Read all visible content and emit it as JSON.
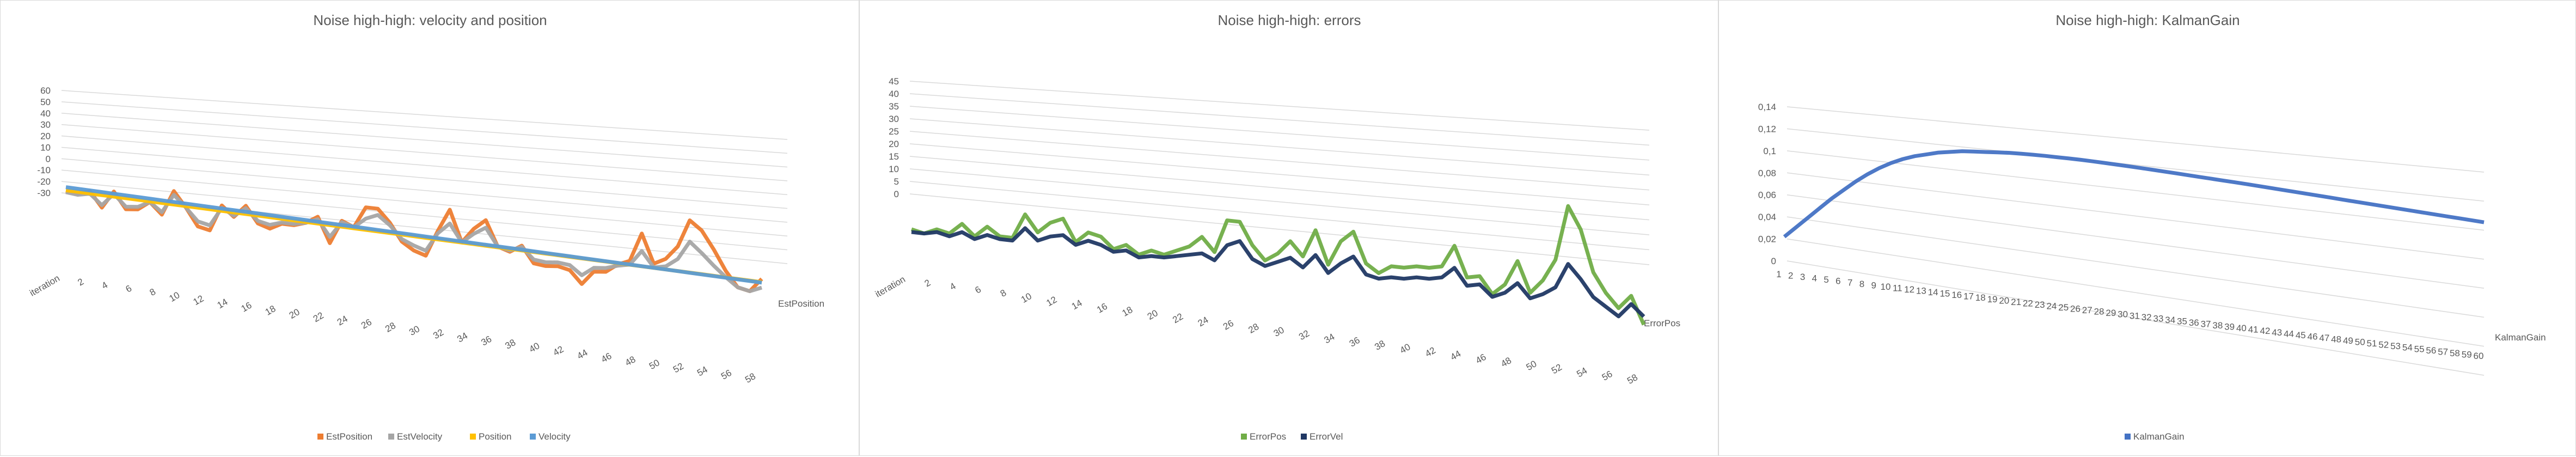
{
  "chart_data": [
    {
      "type": "line",
      "title": "Noise high-high: velocity and position",
      "y_ticks": [
        "60",
        "50",
        "40",
        "30",
        "20",
        "10",
        "0",
        "-10",
        "-20",
        "-30"
      ],
      "ylim": [
        -30,
        60
      ],
      "x_ticks": [
        "iteration",
        "2",
        "4",
        "6",
        "8",
        "10",
        "12",
        "14",
        "16",
        "18",
        "20",
        "22",
        "24",
        "26",
        "28",
        "30",
        "32",
        "34",
        "36",
        "38",
        "40",
        "42",
        "44",
        "46",
        "48",
        "50",
        "52",
        "54",
        "56",
        "58"
      ],
      "depth_label": "EstPosition",
      "legend": "bottom",
      "series": [
        {
          "name": "EstPosition",
          "color": "#ED7D31",
          "values": [
            2,
            1,
            4,
            -8,
            6,
            -7,
            -6,
            1,
            -8,
            12,
            0,
            -14,
            -16,
            5,
            -3,
            7,
            -6,
            -9,
            -4,
            -4,
            -1,
            5,
            -15,
            4,
            0,
            17,
            17,
            7,
            -7,
            -13,
            -16,
            5,
            23,
            -2,
            10,
            18,
            -2,
            -5,
            1,
            -12,
            -13,
            -12,
            -14,
            -24,
            -13,
            -12,
            -5,
            -1,
            22,
            -1,
            4,
            15,
            37,
            30,
            16,
            0,
            -12,
            -14,
            -3
          ]
        },
        {
          "name": "EstVelocity",
          "color": "#A5A5A5",
          "values": [
            1,
            0,
            2,
            -6,
            4,
            -5,
            -4,
            1,
            -6,
            9,
            0,
            -10,
            -12,
            3,
            -2,
            5,
            -4,
            -6,
            -3,
            -3,
            -1,
            3,
            -10,
            3,
            0,
            8,
            12,
            5,
            -5,
            -9,
            -12,
            3,
            12,
            -2,
            6,
            12,
            -2,
            -4,
            0,
            -9,
            -10,
            -9,
            -10,
            -17,
            -10,
            -9,
            -6,
            -4,
            8,
            -4,
            -2,
            5,
            20,
            12,
            3,
            -5,
            -12,
            -14,
            -10
          ]
        },
        {
          "name": "Position",
          "color": "#FFC000",
          "values": [
            2.5,
            2.36,
            2.22,
            2.08,
            1.94,
            1.8,
            1.66,
            1.52,
            1.38,
            1.24,
            1.1,
            0.96,
            0.82,
            0.68,
            0.54,
            0.4,
            0.26,
            0.12,
            -0.02,
            -0.16,
            -0.3,
            -0.44,
            -0.58,
            -0.72,
            -0.86,
            -1,
            -1.14,
            -1.28,
            -1.42,
            -1.56,
            -1.7,
            -1.84,
            -1.98,
            -2.12,
            -2.26,
            -2.4,
            -2.54,
            -2.68,
            -2.82,
            -2.96,
            -3.1,
            -3.24,
            -3.38,
            -3.52,
            -3.66,
            -3.8,
            -3.94,
            -4.08,
            -4.22,
            -4.36,
            -4.5,
            -4.64,
            -4.78,
            -4.92,
            -5.06,
            -5.2,
            -5.34,
            -5.48,
            -5.62
          ]
        },
        {
          "name": "Velocity",
          "color": "#5B9BD5",
          "values": [
            5,
            4.81,
            4.62,
            4.43,
            4.24,
            4.05,
            3.86,
            3.67,
            3.48,
            3.29,
            3.1,
            2.91,
            2.72,
            2.53,
            2.34,
            2.15,
            1.96,
            1.77,
            1.58,
            1.39,
            1.2,
            1.01,
            0.82,
            0.63,
            0.44,
            0.25,
            0.06,
            -0.13,
            -0.32,
            -0.51,
            -0.7,
            -0.89,
            -1.08,
            -1.27,
            -1.46,
            -1.65,
            -1.84,
            -2.03,
            -2.22,
            -2.41,
            -2.6,
            -2.79,
            -2.98,
            -3.17,
            -3.36,
            -3.55,
            -3.74,
            -3.93,
            -4.12,
            -4.31,
            -4.5,
            -4.69,
            -4.88,
            -5.07,
            -5.26,
            -5.45,
            -5.64,
            -5.83,
            -6
          ]
        }
      ]
    },
    {
      "type": "line",
      "title": "Noise high-high: errors",
      "y_ticks": [
        "45",
        "40",
        "35",
        "30",
        "25",
        "20",
        "15",
        "10",
        "5",
        "0"
      ],
      "ylim": [
        0,
        45
      ],
      "x_ticks": [
        "iteration",
        "2",
        "4",
        "6",
        "8",
        "10",
        "12",
        "14",
        "16",
        "18",
        "20",
        "22",
        "24",
        "26",
        "28",
        "30",
        "32",
        "34",
        "36",
        "38",
        "40",
        "42",
        "44",
        "46",
        "48",
        "50",
        "52",
        "54",
        "56",
        "58"
      ],
      "depth_label": "ErrorPos",
      "legend": "bottom",
      "series": [
        {
          "name": "ErrorPos",
          "color": "#70AD47",
          "values": [
            1,
            0,
            2,
            1,
            5,
            1,
            5,
            2,
            2,
            11,
            5,
            9,
            11,
            3,
            7,
            6,
            2,
            4,
            1,
            3,
            2,
            4,
            6,
            10,
            5,
            17,
            17,
            9,
            4,
            7,
            12,
            7,
            17,
            5,
            14,
            18,
            7,
            4,
            7,
            7,
            8,
            8,
            9,
            17,
            6,
            7,
            1,
            5,
            14,
            3,
            8,
            16,
            36,
            28,
            13,
            6,
            1,
            6,
            -4
          ]
        },
        {
          "name": "ErrorVel",
          "color": "#203864",
          "values": [
            0,
            0,
            1,
            0,
            2,
            0,
            2,
            1,
            1,
            6,
            2,
            4,
            5,
            2,
            4,
            3,
            1,
            2,
            0,
            1,
            1,
            2,
            3,
            4,
            2,
            8,
            10,
            4,
            2,
            4,
            6,
            3,
            8,
            2,
            6,
            9,
            3,
            2,
            3,
            3,
            4,
            4,
            5,
            9,
            3,
            4,
            0,
            2,
            6,
            1,
            3,
            6,
            15,
            10,
            4,
            1,
            -2,
            3,
            -1
          ]
        }
      ]
    },
    {
      "type": "line",
      "title": "Noise high-high: KalmanGain",
      "y_ticks": [
        "0,14",
        "0,12",
        "0,1",
        "0,08",
        "0,06",
        "0,04",
        "0,02",
        "0"
      ],
      "ylim": [
        0,
        0.14
      ],
      "x_ticks": [
        "1",
        "2",
        "3",
        "4",
        "5",
        "6",
        "7",
        "8",
        "9",
        "10",
        "11",
        "12",
        "13",
        "14",
        "15",
        "16",
        "17",
        "18",
        "19",
        "20",
        "21",
        "22",
        "23",
        "24",
        "25",
        "26",
        "27",
        "28",
        "29",
        "30",
        "31",
        "32",
        "33",
        "34",
        "35",
        "36",
        "37",
        "38",
        "39",
        "40",
        "41",
        "42",
        "43",
        "44",
        "45",
        "46",
        "47",
        "48",
        "49",
        "50",
        "51",
        "52",
        "53",
        "54",
        "55",
        "56",
        "57",
        "58",
        "59",
        "60"
      ],
      "depth_label": "KalmanGain",
      "legend": "bottom",
      "series": [
        {
          "name": "KalmanGain",
          "color": "#4472C4",
          "values": [
            0.012,
            0.022,
            0.032,
            0.042,
            0.052,
            0.061,
            0.07,
            0.078,
            0.085,
            0.091,
            0.096,
            0.1,
            0.103,
            0.106,
            0.108,
            0.11,
            0.111,
            0.112,
            0.113,
            0.114,
            0.1145,
            0.115,
            0.1153,
            0.1155,
            0.1157,
            0.1158,
            0.1158,
            0.1157,
            0.1156,
            0.1154,
            0.1152,
            0.115,
            0.1147,
            0.1144,
            0.1141,
            0.1138,
            0.1135,
            0.1132,
            0.1129,
            0.1126,
            0.1122,
            0.1118,
            0.1114,
            0.111,
            0.1106,
            0.1102,
            0.1098,
            0.1094,
            0.109,
            0.1086,
            0.1082,
            0.1078,
            0.1074,
            0.107,
            0.1066,
            0.1062,
            0.1058,
            0.1054,
            0.105,
            0.1046
          ]
        }
      ]
    }
  ]
}
